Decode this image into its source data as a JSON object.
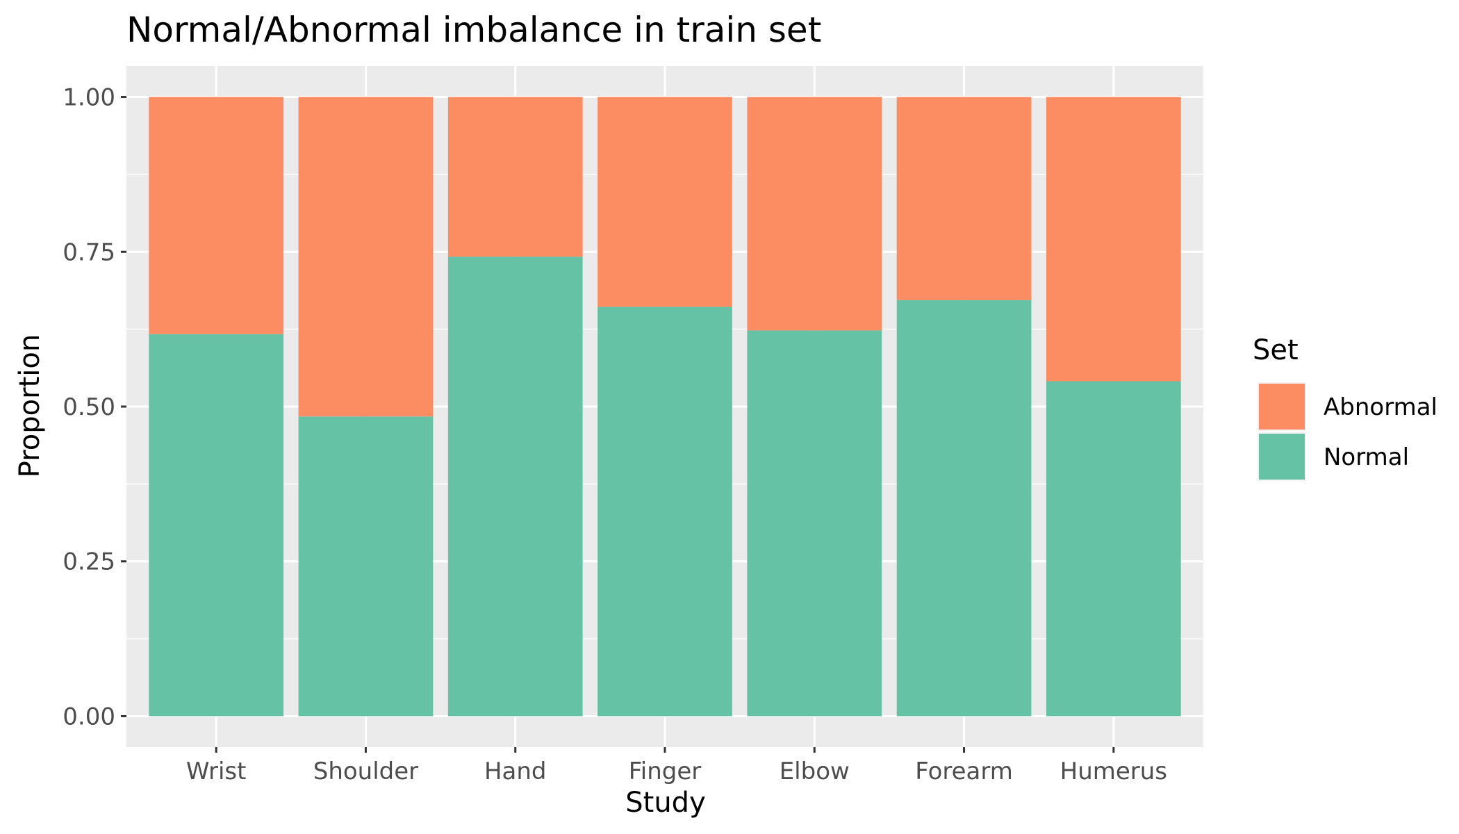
{
  "chart_data": {
    "type": "bar",
    "stacked": true,
    "title": "Normal/Abnormal imbalance in train set",
    "xlabel": "Study",
    "ylabel": "Proportion",
    "categories": [
      "Wrist",
      "Shoulder",
      "Hand",
      "Finger",
      "Elbow",
      "Forearm",
      "Humerus"
    ],
    "series": [
      {
        "name": "Normal",
        "color": "#66c2a5",
        "values": [
          0.617,
          0.484,
          0.742,
          0.661,
          0.623,
          0.672,
          0.541
        ]
      },
      {
        "name": "Abnormal",
        "color": "#fc8d62",
        "values": [
          0.383,
          0.516,
          0.258,
          0.339,
          0.377,
          0.328,
          0.459
        ]
      }
    ],
    "ylim": [
      -0.05,
      1.05
    ],
    "yticks": [
      0.0,
      0.25,
      0.5,
      0.75,
      1.0
    ],
    "ytick_labels": [
      "0.00",
      "0.25",
      "0.50",
      "0.75",
      "1.00"
    ],
    "grid": true,
    "panel_background": "#ebebeb",
    "legend": {
      "title": "Set",
      "position": "right",
      "entries": [
        {
          "label": "Abnormal",
          "color": "#fc8d62"
        },
        {
          "label": "Normal",
          "color": "#66c2a5"
        }
      ]
    }
  }
}
